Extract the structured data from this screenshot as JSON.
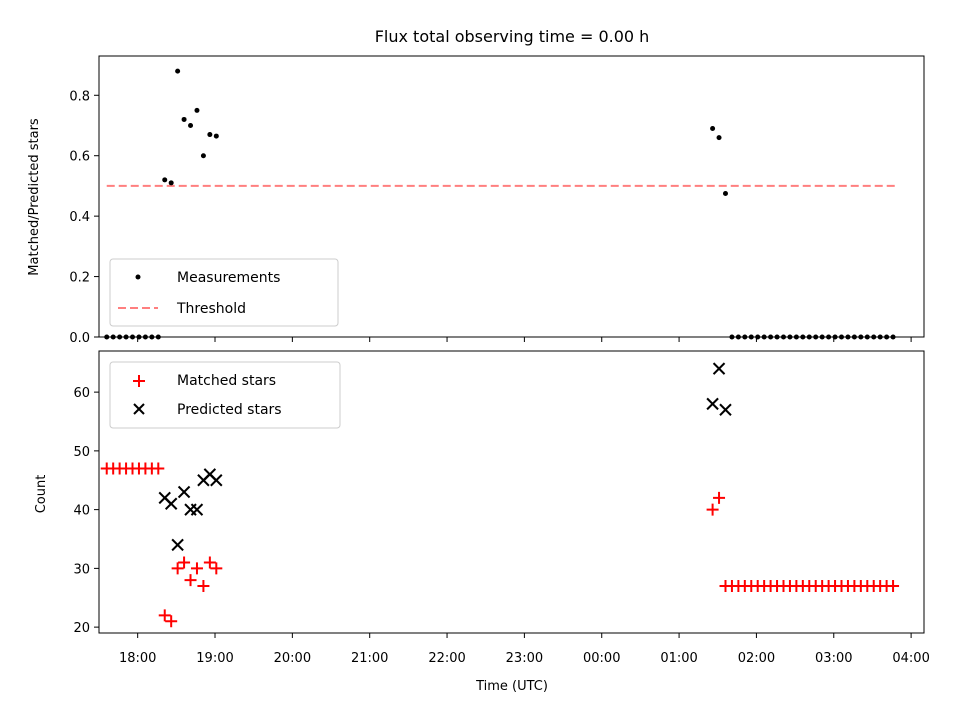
{
  "title": "Flux total observing time = 0.00 h",
  "colors": {
    "measurement": "#000000",
    "threshold": "#ff7f7f",
    "matched": "#ff0000",
    "predicted": "#000000"
  },
  "chart_data": [
    {
      "type": "scatter",
      "panel": "top",
      "ylabel": "Matched/Predicted stars",
      "ylim": [
        0,
        0.93
      ],
      "xlim": [
        "17:30",
        "04:10"
      ],
      "yticks": [
        "0.0",
        "0.2",
        "0.4",
        "0.6",
        "0.8"
      ],
      "ytick_values": [
        0,
        0.2,
        0.4,
        0.6,
        0.8
      ],
      "legend": {
        "position": "lower-left",
        "entries": [
          "Measurements",
          "Threshold"
        ]
      },
      "threshold": {
        "name": "Threshold",
        "value": 0.5,
        "x_start": "17:36",
        "x_end": "03:48"
      },
      "series": [
        {
          "name": "Measurements",
          "points": [
            [
              "17:36",
              0
            ],
            [
              "17:41",
              0
            ],
            [
              "17:46",
              0
            ],
            [
              "17:51",
              0
            ],
            [
              "17:56",
              0
            ],
            [
              "18:01",
              0
            ],
            [
              "18:06",
              0
            ],
            [
              "18:11",
              0
            ],
            [
              "18:16",
              0
            ],
            [
              "18:21",
              0.52
            ],
            [
              "18:26",
              0.51
            ],
            [
              "18:31",
              0.88
            ],
            [
              "18:36",
              0.72
            ],
            [
              "18:41",
              0.7
            ],
            [
              "18:46",
              0.75
            ],
            [
              "18:51",
              0.6
            ],
            [
              "18:56",
              0.67
            ],
            [
              "19:01",
              0.665
            ],
            [
              "01:26",
              0.69
            ],
            [
              "01:31",
              0.66
            ],
            [
              "01:36",
              0.475
            ],
            [
              "01:41",
              0
            ],
            [
              "01:46",
              0
            ],
            [
              "01:51",
              0
            ],
            [
              "01:56",
              0
            ],
            [
              "02:01",
              0
            ],
            [
              "02:06",
              0
            ],
            [
              "02:11",
              0
            ],
            [
              "02:16",
              0
            ],
            [
              "02:21",
              0
            ],
            [
              "02:26",
              0
            ],
            [
              "02:31",
              0
            ],
            [
              "02:36",
              0
            ],
            [
              "02:41",
              0
            ],
            [
              "02:46",
              0
            ],
            [
              "02:51",
              0
            ],
            [
              "02:56",
              0
            ],
            [
              "03:01",
              0
            ],
            [
              "03:06",
              0
            ],
            [
              "03:11",
              0
            ],
            [
              "03:16",
              0
            ],
            [
              "03:21",
              0
            ],
            [
              "03:26",
              0
            ],
            [
              "03:31",
              0
            ],
            [
              "03:36",
              0
            ],
            [
              "03:41",
              0
            ],
            [
              "03:46",
              0
            ]
          ]
        }
      ]
    },
    {
      "type": "scatter",
      "panel": "bottom",
      "xlabel": "Time (UTC)",
      "ylabel": "Count",
      "ylim": [
        19,
        67
      ],
      "xlim": [
        "17:30",
        "04:10"
      ],
      "yticks": [
        "20",
        "30",
        "40",
        "50",
        "60"
      ],
      "ytick_values": [
        20,
        30,
        40,
        50,
        60
      ],
      "xticks": [
        "18:00",
        "19:00",
        "20:00",
        "21:00",
        "22:00",
        "23:00",
        "00:00",
        "01:00",
        "02:00",
        "03:00",
        "04:00"
      ],
      "legend": {
        "position": "top-left",
        "entries": [
          "Matched stars",
          "Predicted stars"
        ]
      },
      "series": [
        {
          "name": "Matched stars",
          "marker": "+",
          "points": [
            [
              "17:36",
              47
            ],
            [
              "17:41",
              47
            ],
            [
              "17:46",
              47
            ],
            [
              "17:51",
              47
            ],
            [
              "17:56",
              47
            ],
            [
              "18:01",
              47
            ],
            [
              "18:06",
              47
            ],
            [
              "18:11",
              47
            ],
            [
              "18:16",
              47
            ],
            [
              "18:21",
              22
            ],
            [
              "18:26",
              21
            ],
            [
              "18:31",
              30
            ],
            [
              "18:36",
              31
            ],
            [
              "18:41",
              28
            ],
            [
              "18:46",
              30
            ],
            [
              "18:51",
              27
            ],
            [
              "18:56",
              31
            ],
            [
              "19:01",
              30
            ],
            [
              "01:26",
              40
            ],
            [
              "01:31",
              42
            ],
            [
              "01:36",
              27
            ],
            [
              "01:41",
              27
            ],
            [
              "01:46",
              27
            ],
            [
              "01:51",
              27
            ],
            [
              "01:56",
              27
            ],
            [
              "02:01",
              27
            ],
            [
              "02:06",
              27
            ],
            [
              "02:11",
              27
            ],
            [
              "02:16",
              27
            ],
            [
              "02:21",
              27
            ],
            [
              "02:26",
              27
            ],
            [
              "02:31",
              27
            ],
            [
              "02:36",
              27
            ],
            [
              "02:41",
              27
            ],
            [
              "02:46",
              27
            ],
            [
              "02:51",
              27
            ],
            [
              "02:56",
              27
            ],
            [
              "03:01",
              27
            ],
            [
              "03:06",
              27
            ],
            [
              "03:11",
              27
            ],
            [
              "03:16",
              27
            ],
            [
              "03:21",
              27
            ],
            [
              "03:26",
              27
            ],
            [
              "03:31",
              27
            ],
            [
              "03:36",
              27
            ],
            [
              "03:41",
              27
            ],
            [
              "03:46",
              27
            ]
          ]
        },
        {
          "name": "Predicted stars",
          "marker": "x",
          "points": [
            [
              "18:21",
              42
            ],
            [
              "18:26",
              41
            ],
            [
              "18:31",
              34
            ],
            [
              "18:36",
              43
            ],
            [
              "18:41",
              40
            ],
            [
              "18:46",
              40
            ],
            [
              "18:51",
              45
            ],
            [
              "18:56",
              46
            ],
            [
              "19:01",
              45
            ],
            [
              "01:26",
              58
            ],
            [
              "01:31",
              64
            ],
            [
              "01:36",
              57
            ]
          ]
        }
      ]
    }
  ]
}
